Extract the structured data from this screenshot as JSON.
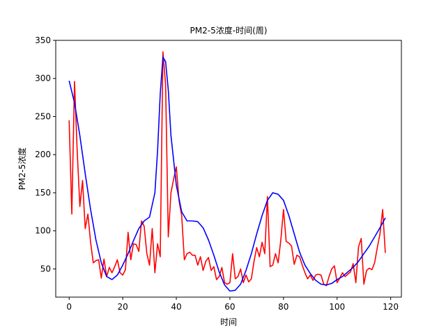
{
  "chart_data": {
    "type": "line",
    "title": "PM2-5浓度-时间(周)",
    "xlabel": "时间",
    "ylabel": "PM2-5浓度",
    "xlim": [
      -5,
      124
    ],
    "ylim": [
      13,
      350
    ],
    "xticks": [
      0,
      20,
      40,
      60,
      80,
      100,
      120
    ],
    "yticks": [
      50,
      100,
      150,
      200,
      250,
      300,
      350
    ],
    "grid": false,
    "series": [
      {
        "color": "#ff0000",
        "x": [
          0,
          1,
          2,
          3,
          4,
          5,
          6,
          7,
          8,
          9,
          10,
          11,
          12,
          13,
          14,
          15,
          16,
          17,
          18,
          19,
          20,
          21,
          22,
          23,
          24,
          25,
          26,
          27,
          28,
          29,
          30,
          31,
          32,
          33,
          34,
          35,
          36,
          37,
          38,
          39,
          40,
          41,
          42,
          43,
          44,
          45,
          46,
          47,
          48,
          49,
          50,
          51,
          52,
          53,
          54,
          55,
          56,
          57,
          58,
          59,
          60,
          61,
          62,
          63,
          64,
          65,
          66,
          67,
          68,
          69,
          70,
          71,
          72,
          73,
          74,
          75,
          76,
          77,
          78,
          79,
          80,
          81,
          82,
          83,
          84,
          85,
          86,
          87,
          88,
          89,
          90,
          91,
          92,
          93,
          94,
          95,
          96,
          97,
          98,
          99,
          100,
          101,
          102,
          103,
          104,
          105,
          106,
          107,
          108,
          109,
          110,
          111,
          112,
          113,
          114,
          115,
          116,
          117,
          118
        ],
        "y": [
          245,
          122,
          296,
          205,
          132,
          166,
          103,
          122,
          85,
          58,
          61,
          62,
          38,
          63,
          40,
          52,
          45,
          53,
          62,
          45,
          42,
          49,
          98,
          62,
          83,
          82,
          73,
          113,
          106,
          70,
          55,
          103,
          45,
          83,
          66,
          335,
          292,
          92,
          150,
          168,
          184,
          140,
          120,
          62,
          70,
          72,
          68,
          68,
          55,
          66,
          48,
          60,
          65,
          48,
          53,
          36,
          40,
          52,
          32,
          30,
          32,
          70,
          37,
          40,
          50,
          32,
          42,
          33,
          37,
          60,
          78,
          66,
          85,
          70,
          145,
          53,
          55,
          70,
          58,
          88,
          128,
          86,
          84,
          80,
          56,
          68,
          66,
          55,
          45,
          37,
          42,
          35,
          42,
          43,
          42,
          30,
          28,
          40,
          50,
          54,
          32,
          38,
          45,
          40,
          43,
          46,
          57,
          32,
          79,
          90,
          30,
          48,
          51,
          49,
          58,
          78,
          96,
          128,
          71
        ]
      },
      {
        "color": "#0000ff",
        "x": [
          0,
          2,
          4,
          6,
          8,
          10,
          12,
          14,
          16,
          18,
          20,
          22,
          24,
          26,
          28,
          30,
          32,
          33,
          34,
          35,
          36,
          37,
          38,
          40,
          42,
          44,
          46,
          48,
          50,
          52,
          54,
          56,
          58,
          60,
          62,
          64,
          66,
          68,
          70,
          72,
          74,
          76,
          78,
          80,
          82,
          84,
          86,
          88,
          90,
          92,
          94,
          96,
          98,
          100,
          102,
          104,
          106,
          108,
          110,
          112,
          114,
          116,
          118
        ],
        "y": [
          297,
          268,
          225,
          175,
          128,
          88,
          58,
          40,
          36,
          42,
          55,
          70,
          87,
          103,
          113,
          118,
          150,
          205,
          280,
          328,
          322,
          285,
          225,
          160,
          125,
          113,
          113,
          112,
          104,
          88,
          68,
          46,
          29,
          21,
          22,
          30,
          48,
          70,
          96,
          120,
          140,
          150,
          148,
          140,
          120,
          96,
          72,
          55,
          44,
          35,
          30,
          29,
          31,
          36,
          40,
          46,
          52,
          60,
          70,
          80,
          92,
          104,
          117
        ]
      }
    ]
  }
}
